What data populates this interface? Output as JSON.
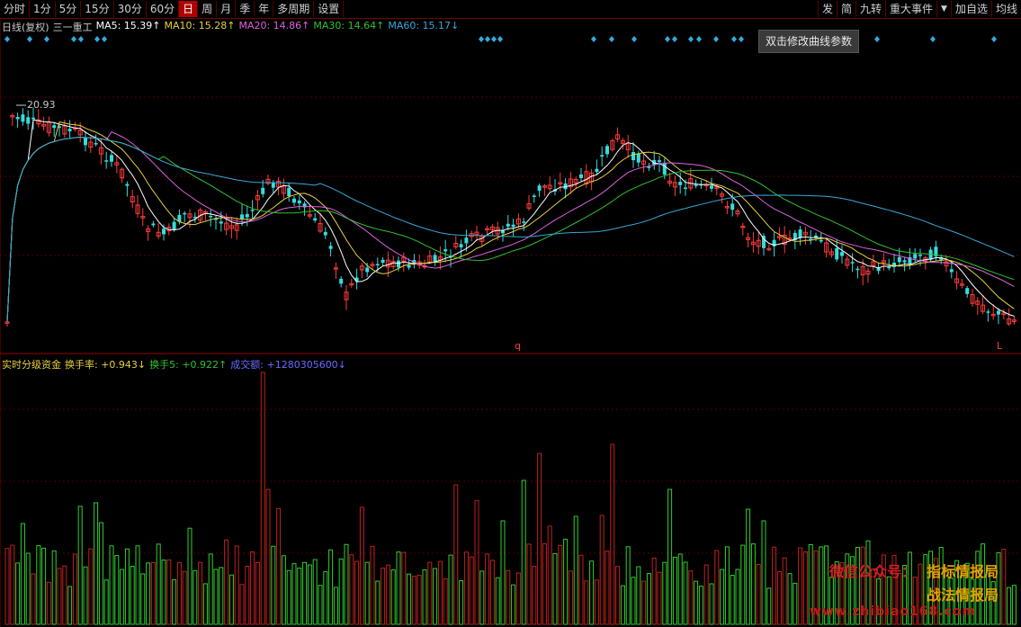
{
  "toolbar": {
    "left": [
      "分时",
      "1分",
      "5分",
      "15分",
      "30分",
      "60分",
      "日",
      "周",
      "月",
      "季",
      "年",
      "多周期",
      "设置"
    ],
    "active": "日",
    "right": [
      "发",
      "简",
      "九转",
      "重大事件",
      "加自选",
      "均线"
    ]
  },
  "main_legend": {
    "period": "日线(复权)",
    "name": "三一重工",
    "ma5": "MA5: 15.39↑",
    "ma10": "MA10: 15.28↑",
    "ma20": "MA20: 14.86↑",
    "ma30": "MA30: 14.64↑",
    "ma60": "MA60: 15.17↓"
  },
  "high_label": "20.93",
  "tooltip": "双击修改曲线参数",
  "markers": {
    "q": "q",
    "l": "L"
  },
  "sub_legend": {
    "name": "实时分级资金",
    "turnover": "换手率: +0.943↓",
    "turnover5": "换手5: +0.922↑",
    "amount": "成交额: +1280305600↓"
  },
  "watermark": {
    "wechat": "微信公众号：",
    "brand1": "指标情报局",
    "brand2": "战法情报局",
    "site": "www.zhibiao168.com"
  },
  "colors": {
    "up": "#ff3c3c",
    "down": "#33dddd",
    "vol_up": "#c02020",
    "vol_down": "#2fd02f",
    "ma5": "#ffffff",
    "ma10": "#e6d040",
    "ma20": "#e060e0",
    "ma30": "#30c030",
    "ma60": "#3aa7d8"
  }
}
